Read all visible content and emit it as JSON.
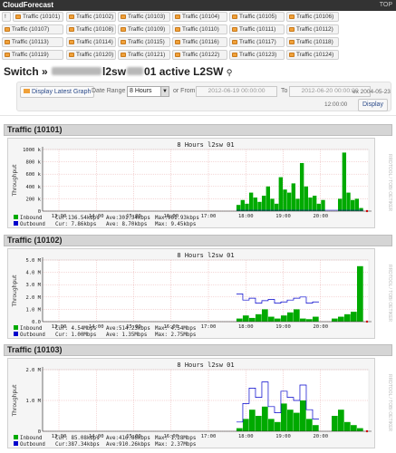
{
  "app": {
    "brand": "CloudForecast",
    "top_link": "TOP"
  },
  "tabs": [
    {
      "label": "!"
    },
    {
      "label": "Traffic (10101)"
    },
    {
      "label": "Traffic (10102)"
    },
    {
      "label": "Traffic (10103)"
    },
    {
      "label": "Traffic (10104)"
    },
    {
      "label": "Traffic (10105)"
    },
    {
      "label": "Traffic (10106)"
    },
    {
      "label": "Traffic (10107)"
    },
    {
      "label": "Traffic (10108)"
    },
    {
      "label": "Traffic (10109)"
    },
    {
      "label": "Traffic (10110)"
    },
    {
      "label": "Traffic (10111)"
    },
    {
      "label": "Traffic (10112)"
    },
    {
      "label": "Traffic (10113)"
    },
    {
      "label": "Traffic (10114)"
    },
    {
      "label": "Traffic (10115)"
    },
    {
      "label": "Traffic (10116)"
    },
    {
      "label": "Traffic (10117)"
    },
    {
      "label": "Traffic (10118)"
    },
    {
      "label": "Traffic (10119)"
    },
    {
      "label": "Traffic (10120)"
    },
    {
      "label": "Traffic (10121)"
    },
    {
      "label": "Traffic (10122)"
    },
    {
      "label": "Traffic (10123)"
    },
    {
      "label": "Traffic (10124)"
    }
  ],
  "switch": {
    "prefix": "Switch »",
    "name_suffix": "l2sw",
    "name_tail": "01 active L2SW",
    "pin_icon": "pin-icon"
  },
  "filters": {
    "display_latest_label": "Display Latest Graph",
    "date_range_label": "Date Range",
    "date_range_value": "8 Hours",
    "or_from_label": "or From",
    "from_value": "2012-06-19 00:00:00",
    "to_label": "To",
    "to_value": "2012-06-20 00:00:00",
    "example_label": "ex 2004-05-23",
    "example_time": "12:00:00",
    "display_label": "Display"
  },
  "graphs": [
    {
      "header": "Traffic (10101)",
      "title": "8 Hours l2sw",
      "title_tail": "01",
      "ylabel": "Throughput",
      "yticks": [
        "1000 k",
        "800 k",
        "600 k",
        "400 k",
        "200 k",
        "0"
      ],
      "xticks": [
        "13:00",
        "14:00",
        "15:00",
        "16:00",
        "17:00",
        "18:00",
        "19:00",
        "20:00"
      ],
      "legend": [
        {
          "name": "Inbound",
          "cur": "Cur:136.54kbps",
          "ave": "Ave:301.34kbps",
          "max": "Max:961.93kbps"
        },
        {
          "name": "Outbound",
          "cur": "Cur:  7.86kbps",
          "ave": "Ave:  8.70kbps",
          "max": "Max:  9.45kbps"
        }
      ]
    },
    {
      "header": "Traffic (10102)",
      "title": "8 Hours l2sw",
      "title_tail": "01",
      "ylabel": "Throughput",
      "yticks": [
        "5.0 M",
        "4.0 M",
        "3.0 M",
        "2.0 M",
        "1.0 M",
        "0.0"
      ],
      "xticks": [
        "13:00",
        "14:00",
        "15:00",
        "16:00",
        "17:00",
        "18:00",
        "19:00",
        "20:00"
      ],
      "legend": [
        {
          "name": "Inbound",
          "cur": "Cur:  4.54Mbps",
          "ave": "Ave:514.23kbps",
          "max": "Max:  4.54Mbps"
        },
        {
          "name": "Outbound",
          "cur": "Cur:  1.00Mbps",
          "ave": "Ave:  1.35Mbps",
          "max": "Max:  2.75Mbps"
        }
      ]
    },
    {
      "header": "Traffic (10103)",
      "title": "8 Hours l2sw",
      "title_tail": "01",
      "ylabel": "Throughput",
      "yticks": [
        "2.0 M",
        "1.0 M",
        "0"
      ],
      "xticks": [
        "13:00",
        "14:00",
        "15:00",
        "16:00",
        "17:00",
        "18:00",
        "19:00",
        "20:00"
      ],
      "legend": [
        {
          "name": "Inbound",
          "cur": "Cur: 85.08kbps",
          "ave": "Ave:416.86kbps",
          "max": "Max:  1.28Mbps"
        },
        {
          "name": "Outbound",
          "cur": "Cur:387.34kbps",
          "ave": "Ave:910.26kbps",
          "max": "Max:  2.37Mbps"
        }
      ]
    }
  ],
  "colors": {
    "inbound": "#00aa00",
    "outbound": "#0000cc",
    "header_bg": "#d5d5d5",
    "topbar": "#333333"
  }
}
